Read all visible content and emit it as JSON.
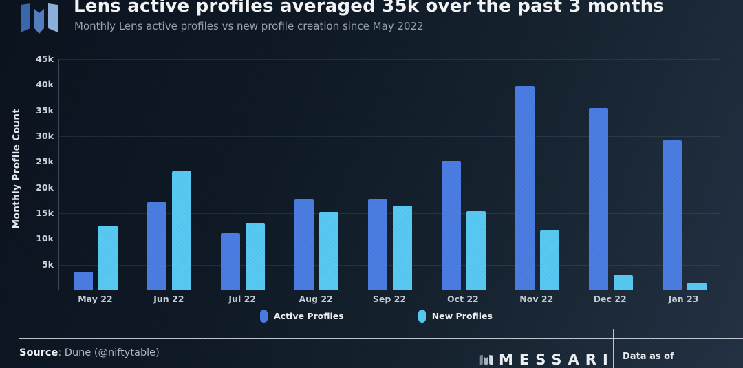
{
  "header": {
    "title": "Lens active profiles averaged 35k over the past 3 months",
    "subtitle": "Monthly Lens active profiles vs new profile creation since May 2022"
  },
  "chart_data": {
    "type": "bar",
    "title": "Lens active profiles averaged 35k over the past 3 months",
    "categories": [
      "May 22",
      "Jun 22",
      "Jul 22",
      "Aug 22",
      "Sep 22",
      "Oct 22",
      "Nov 22",
      "Dec 22",
      "Jan 23"
    ],
    "series": [
      {
        "name": "Active Profiles",
        "color": "#4a7ce2",
        "values": [
          3500,
          17000,
          11000,
          17500,
          17600,
          25000,
          39700,
          35300,
          29100
        ]
      },
      {
        "name": "New Profiles",
        "color": "#57c9f2",
        "values": [
          12500,
          23000,
          13000,
          15100,
          16300,
          15300,
          11500,
          2800,
          1300
        ]
      }
    ],
    "xlabel": "",
    "ylabel": "Monthly Profile Count",
    "ylim": [
      0,
      45000
    ],
    "ytick_step": 5000,
    "ytick_labels": [
      "5k",
      "10k",
      "15k",
      "20k",
      "25k",
      "30k",
      "35k",
      "40k",
      "45k"
    ],
    "grid": true,
    "legend_position": "bottom"
  },
  "footer": {
    "source_label": "Source",
    "source_value": ": Dune (@niftytable)",
    "brand": "MESSARI",
    "data_as_of": "Data as of"
  },
  "colors": {
    "background_dark": "#0a121e",
    "background_light": "#223143",
    "active_profiles": "#4a7ce2",
    "new_profiles": "#57c9f2",
    "title_text": "#f4f6f8",
    "subtitle_text": "#99a3b1",
    "grid_line": "rgba(150,170,200,0.14)",
    "footer_line": "#cdd4dd"
  }
}
